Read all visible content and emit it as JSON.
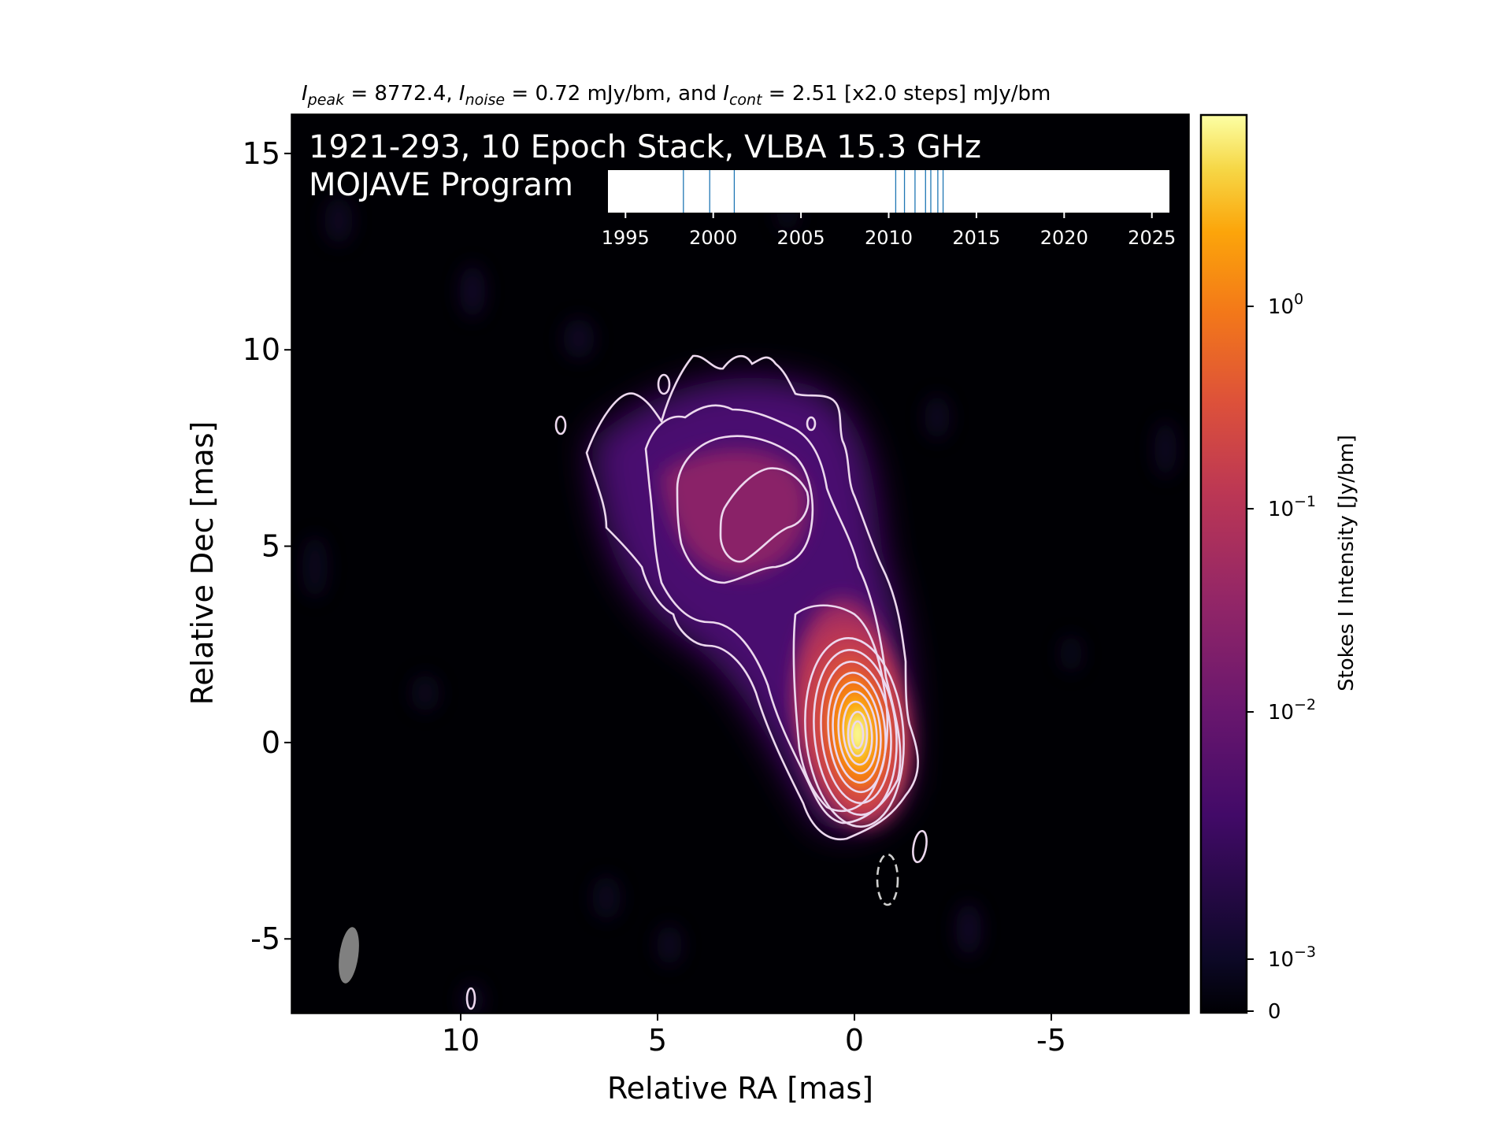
{
  "chart_data": {
    "type": "heatmap",
    "subtitle": {
      "peak_sym": "I",
      "peak_sub": "peak",
      "peak_val": " = 8772.4, ",
      "noise_sym": "I",
      "noise_sub": "noise",
      "noise_val": " = 0.72 mJy/bm, and ",
      "cont_sym": "I",
      "cont_sub": "cont",
      "cont_val": " = 2.51 [x2.0 steps] mJy/bm"
    },
    "title_line1": "1921-293, 10 Epoch Stack, VLBA 15.3 GHz",
    "title_line2": "MOJAVE Program",
    "xlabel": "Relative RA [mas]",
    "ylabel": "Relative Dec [mas]",
    "xlim": [
      14.3,
      -8.5
    ],
    "ylim": [
      -6.9,
      16.0
    ],
    "xticks": [
      10,
      5,
      0,
      -5
    ],
    "yticks": [
      15,
      10,
      5,
      0,
      -5
    ],
    "xtick_labels": [
      "10",
      "5",
      "0",
      "-5"
    ],
    "ytick_labels": [
      "15",
      "10",
      "5",
      "0",
      "-5"
    ],
    "colorbar": {
      "label": "Stokes I Intensity [Jy/bm]",
      "scale": "log",
      "ticks": [
        {
          "base": "10",
          "exp": "0"
        },
        {
          "base": "10",
          "exp": "−1"
        },
        {
          "base": "10",
          "exp": "−2"
        },
        {
          "base": "10",
          "exp": "−3"
        },
        {
          "base": "0",
          "exp": ""
        }
      ],
      "colormap": "inferno"
    },
    "epoch_timeline": {
      "xlim": [
        1994,
        2026
      ],
      "ticks": [
        1995,
        2000,
        2005,
        2010,
        2015,
        2020,
        2025
      ],
      "tick_labels": [
        "1995",
        "2000",
        "2005",
        "2010",
        "2015",
        "2020",
        "2025"
      ],
      "epochs": [
        1998.3,
        1999.8,
        2001.2,
        2010.4,
        2010.9,
        2011.5,
        2012.1,
        2012.4,
        2012.8,
        2013.1
      ],
      "line_color": "#1f77b4"
    },
    "core_position": [
      0.0,
      0.3
    ],
    "beam": {
      "ra": 12.9,
      "dec": -5.4,
      "major_mas": 1.4,
      "minor_mas": 0.5
    }
  }
}
